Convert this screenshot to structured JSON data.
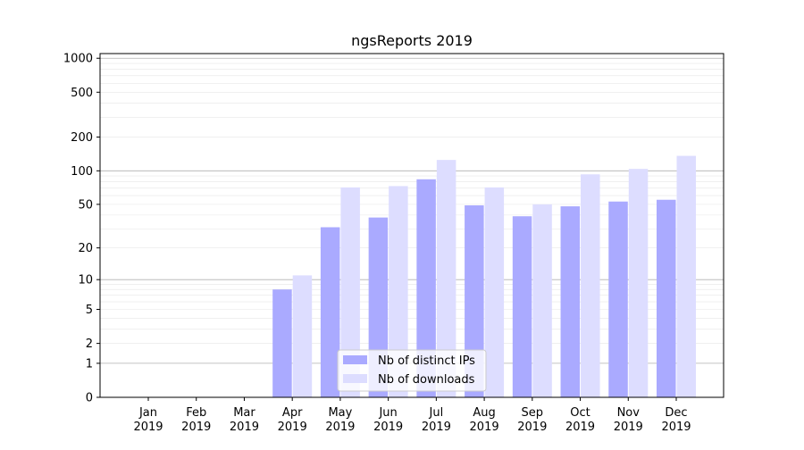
{
  "chart_data": {
    "type": "bar",
    "title": "ngsReports 2019",
    "xlabel": "",
    "ylabel": "",
    "yscale": "log1p",
    "ylim": [
      0,
      1100
    ],
    "yticks": [
      0,
      1,
      2,
      5,
      10,
      20,
      50,
      100,
      200,
      500,
      1000
    ],
    "grid": "horizontal",
    "legend_position": "bottom-center",
    "categories": [
      [
        "Jan",
        "2019"
      ],
      [
        "Feb",
        "2019"
      ],
      [
        "Mar",
        "2019"
      ],
      [
        "Apr",
        "2019"
      ],
      [
        "May",
        "2019"
      ],
      [
        "Jun",
        "2019"
      ],
      [
        "Jul",
        "2019"
      ],
      [
        "Aug",
        "2019"
      ],
      [
        "Sep",
        "2019"
      ],
      [
        "Oct",
        "2019"
      ],
      [
        "Nov",
        "2019"
      ],
      [
        "Dec",
        "2019"
      ]
    ],
    "series": [
      {
        "name": "Nb of distinct IPs",
        "color": "#aaaaff",
        "values": [
          0,
          0,
          0,
          8,
          31,
          38,
          84,
          49,
          39,
          48,
          53,
          55
        ]
      },
      {
        "name": "Nb of downloads",
        "color": "#ddddff",
        "values": [
          0,
          0,
          0,
          11,
          71,
          73,
          125,
          71,
          50,
          93,
          104,
          136
        ]
      }
    ]
  }
}
